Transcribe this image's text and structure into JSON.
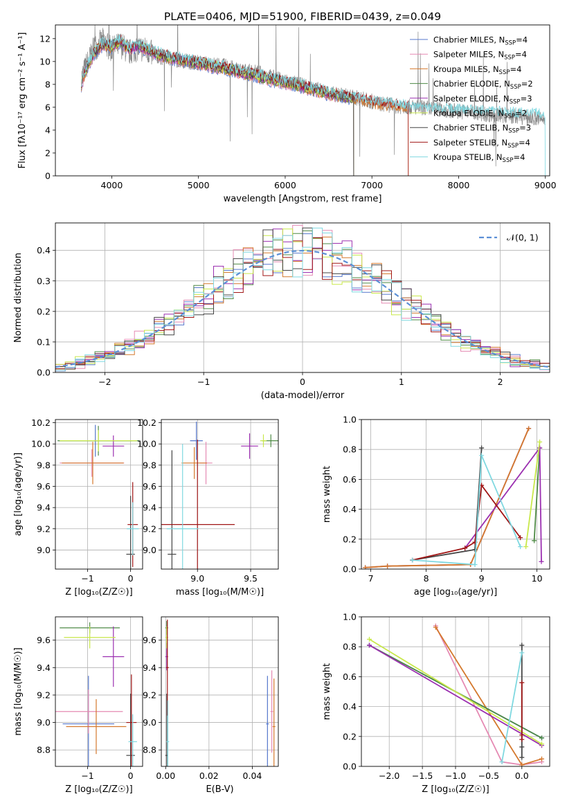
{
  "figure_title": "PLATE=0406, MJD=51900, FIBERID=0439, z=0.049",
  "models": [
    {
      "name": "Chabrier MILES",
      "nssp": "4",
      "color": "#5577cc"
    },
    {
      "name": "Salpeter MILES",
      "nssp": "4",
      "color": "#e58ab3"
    },
    {
      "name": "Kroupa MILES",
      "nssp": "4",
      "color": "#d4782c"
    },
    {
      "name": "Chabrier ELODIE",
      "nssp": "2",
      "color": "#4e8a45"
    },
    {
      "name": "Salpeter ELODIE",
      "nssp": "3",
      "color": "#9b2fb0"
    },
    {
      "name": "Kroupa ELODIE",
      "nssp": "2",
      "color": "#c8e84a"
    },
    {
      "name": "Chabrier STELIB",
      "nssp": "3",
      "color": "#444444"
    },
    {
      "name": "Salpeter STELIB",
      "nssp": "4",
      "color": "#a01515"
    },
    {
      "name": "Kroupa STELIB",
      "nssp": "4",
      "color": "#7fd8e0"
    }
  ],
  "chart_data": [
    {
      "id": "spectrum",
      "type": "line",
      "xlabel": "wavelength [Angstrom, rest frame]",
      "ylabel": "Flux [fλ10⁻¹⁷ erg cm⁻² s⁻¹ A⁻¹]",
      "xlim": [
        3350,
        9050
      ],
      "ylim": [
        0,
        13.2
      ],
      "xticks": [
        4000,
        5000,
        6000,
        7000,
        8000,
        9000
      ],
      "yticks": [
        0,
        2,
        4,
        6,
        8,
        10,
        12
      ],
      "data_series": {
        "color": "#888888",
        "x": [
          3650,
          3700,
          3800,
          3900,
          4000,
          4100,
          4200,
          4300,
          4400,
          4500,
          4700,
          4900,
          5100,
          5300,
          5500,
          5700,
          5900,
          6100,
          6300,
          6500,
          6700,
          6900,
          7100,
          7300,
          7500,
          7700,
          7900,
          8100,
          8300,
          8500,
          8700,
          8900
        ],
        "y": [
          8.5,
          9.5,
          11.2,
          11.8,
          11.0,
          11.5,
          10.8,
          11.2,
          11.0,
          10.5,
          10.2,
          10.0,
          9.8,
          9.6,
          9.2,
          9.0,
          8.5,
          8.1,
          7.7,
          7.2,
          7.0,
          6.7,
          6.3,
          6.1,
          6.0,
          5.9,
          5.7,
          5.6,
          5.4,
          5.3,
          5.2,
          5.0
        ]
      },
      "model_curve": {
        "x": [
          3650,
          3700,
          3800,
          3900,
          4000,
          4100,
          4200,
          4300,
          4400,
          4500,
          4700,
          4900,
          5100,
          5300,
          5500,
          5700,
          5900,
          6100,
          6300,
          6500,
          6700,
          6900,
          7100,
          7300,
          7420
        ],
        "y": [
          8.0,
          9.2,
          10.8,
          11.5,
          11.3,
          11.8,
          11.0,
          11.4,
          11.1,
          10.7,
          10.3,
          10.0,
          9.7,
          9.4,
          9.0,
          8.7,
          8.3,
          8.0,
          7.6,
          7.2,
          6.9,
          6.6,
          6.3,
          6.1,
          6.0
        ]
      },
      "model_ends": [
        6790,
        6790,
        7420,
        6790,
        6790,
        6790,
        6790,
        7420,
        9000
      ]
    },
    {
      "id": "residuals",
      "type": "line",
      "xlabel": "(data-model)/error",
      "ylabel": "Normed distribution",
      "xlim": [
        -2.5,
        2.5
      ],
      "ylim": [
        0,
        0.49
      ],
      "xticks": [
        -2,
        -1,
        0,
        1,
        2
      ],
      "yticks": [
        0.0,
        0.1,
        0.2,
        0.3,
        0.4
      ],
      "legend": "𝒩(0, 1)",
      "bin_width": 0.1,
      "normal_curve": {
        "mean": 0,
        "sigma": 1,
        "color": "#5b8fd6"
      }
    },
    {
      "id": "age-vs-Z",
      "type": "scatter",
      "xlabel": "Z [log₁₀(Z/Z☉)]",
      "ylabel": "age  [log₁₀(age/yr)]",
      "xlim": [
        -1.75,
        0.28
      ],
      "ylim": [
        8.82,
        10.23
      ],
      "xticks": [
        -1,
        0
      ],
      "yticks": [
        9.0,
        9.2,
        9.4,
        9.6,
        9.8,
        10.0,
        10.2
      ],
      "points": [
        {
          "x": -0.82,
          "y": 10.03,
          "xerr": 0.85,
          "yerr": 0.15
        },
        {
          "x": -0.9,
          "y": 9.82,
          "xerr": 0.75,
          "yerr": 0.13
        },
        {
          "x": -0.88,
          "y": 9.82,
          "xerr": 0.72,
          "yerr": 0.2
        },
        {
          "x": -0.75,
          "y": 10.03,
          "xerr": 0.95,
          "yerr": 0.14
        },
        {
          "x": -0.4,
          "y": 9.98,
          "xerr": 0.25,
          "yerr": 0.1
        },
        {
          "x": -0.75,
          "y": 10.03,
          "xerr": 0.9,
          "yerr": 0.1
        },
        {
          "x": 0.0,
          "y": 8.96,
          "xerr": 0.1,
          "yerr": 0.55
        },
        {
          "x": 0.05,
          "y": 9.24,
          "xerr": 0.12,
          "yerr": 0.4
        },
        {
          "x": 0.05,
          "y": 9.2,
          "xerr": 0.14,
          "yerr": 0.25
        }
      ]
    },
    {
      "id": "age-vs-mass",
      "type": "scatter",
      "xlabel": "mass [log₁₀(M/M☉)]",
      "ylabel": "",
      "xlim": [
        8.66,
        9.76
      ],
      "ylim": [
        8.82,
        10.23
      ],
      "xticks": [
        9.0,
        9.5
      ],
      "yticks": [
        9.0,
        9.2,
        9.4,
        9.6,
        9.8,
        10.0,
        10.2
      ],
      "points": [
        {
          "x": 8.99,
          "y": 10.03,
          "xerr": 0.06,
          "yerr": 0.18
        },
        {
          "x": 9.08,
          "y": 9.82,
          "xerr": 0.06,
          "yerr": 0.2
        },
        {
          "x": 8.97,
          "y": 9.82,
          "xerr": 0.12,
          "yerr": 0.15
        },
        {
          "x": 9.69,
          "y": 10.03,
          "xerr": 0.08,
          "yerr": 0.06
        },
        {
          "x": 9.49,
          "y": 9.98,
          "xerr": 0.08,
          "yerr": 0.12
        },
        {
          "x": 9.62,
          "y": 10.03,
          "xerr": 0.03,
          "yerr": 0.06
        },
        {
          "x": 8.76,
          "y": 8.96,
          "xerr": 0.04,
          "yerr": 0.98
        },
        {
          "x": 9.0,
          "y": 9.24,
          "xerr": 0.35,
          "yerr": 0.8
        },
        {
          "x": 8.86,
          "y": 9.2,
          "xerr": 0.15,
          "yerr": 0.8
        }
      ]
    },
    {
      "id": "weight-vs-age",
      "type": "line",
      "xlabel": "age  [log₁₀(age/yr)]",
      "ylabel": "mass weight",
      "xlim": [
        6.83,
        10.23
      ],
      "ylim": [
        0,
        1.0
      ],
      "xticks": [
        7,
        8,
        9,
        10
      ],
      "yticks": [
        0.0,
        0.2,
        0.4,
        0.6,
        0.8,
        1.0
      ],
      "series": [
        {
          "x": [
            6.9,
            7.3,
            8.8,
            9.85
          ],
          "y": [
            0.01,
            0.02,
            0.03,
            0.94
          ]
        },
        {
          "x": [
            6.9,
            7.3,
            8.8,
            9.85
          ],
          "y": [
            0.01,
            0.02,
            0.03,
            0.94
          ]
        },
        {
          "x": [
            6.9,
            7.3,
            8.8,
            9.85
          ],
          "y": [
            0.01,
            0.02,
            0.03,
            0.94
          ]
        },
        {
          "x": [
            9.95,
            10.05
          ],
          "y": [
            0.19,
            0.81
          ]
        },
        {
          "x": [
            8.7,
            10.05,
            10.08
          ],
          "y": [
            0.14,
            0.81,
            0.05
          ]
        },
        {
          "x": [
            9.8,
            10.05
          ],
          "y": [
            0.15,
            0.85
          ]
        },
        {
          "x": [
            7.75,
            8.88,
            9.0
          ],
          "y": [
            0.06,
            0.13,
            0.81
          ]
        },
        {
          "x": [
            7.75,
            8.7,
            8.88,
            9.0,
            9.7
          ],
          "y": [
            0.06,
            0.14,
            0.18,
            0.56,
            0.21
          ]
        },
        {
          "x": [
            7.75,
            8.88,
            9.0,
            9.7
          ],
          "y": [
            0.06,
            0.03,
            0.76,
            0.15
          ]
        }
      ]
    },
    {
      "id": "mass-vs-Z",
      "type": "scatter",
      "xlabel": "Z [log₁₀(Z/Z☉)]",
      "ylabel": "mass [log₁₀(M/M☉)]",
      "xlim": [
        -1.75,
        0.28
      ],
      "ylim": [
        8.68,
        9.77
      ],
      "xticks": [
        -1,
        0
      ],
      "yticks": [
        8.8,
        9.0,
        9.2,
        9.4,
        9.6
      ],
      "points": [
        {
          "x": -0.98,
          "y": 8.99,
          "xerr": 0.6,
          "yerr": 0.35
        },
        {
          "x": -0.98,
          "y": 9.08,
          "xerr": 0.8,
          "yerr": 0.16
        },
        {
          "x": -0.8,
          "y": 8.97,
          "xerr": 0.7,
          "yerr": 0.2
        },
        {
          "x": -0.95,
          "y": 9.69,
          "xerr": 0.7,
          "yerr": 0.04
        },
        {
          "x": -0.4,
          "y": 9.48,
          "xerr": 0.25,
          "yerr": 0.22
        },
        {
          "x": -0.95,
          "y": 9.62,
          "xerr": 0.6,
          "yerr": 0.08
        },
        {
          "x": 0.0,
          "y": 8.76,
          "xerr": 0.1,
          "yerr": 0.45
        },
        {
          "x": 0.02,
          "y": 9.0,
          "xerr": 0.12,
          "yerr": 0.35
        },
        {
          "x": 0.05,
          "y": 8.86,
          "xerr": 0.1,
          "yerr": 0.2
        }
      ]
    },
    {
      "id": "mass-vs-EBV",
      "type": "scatter",
      "xlabel": "E(B-V)",
      "ylabel": "",
      "xlim": [
        -0.002,
        0.052
      ],
      "ylim": [
        8.68,
        9.77
      ],
      "xticks": [
        0.0,
        0.02,
        0.04
      ],
      "yticks": [
        8.8,
        9.0,
        9.2,
        9.4,
        9.6
      ],
      "points": [
        {
          "x": 0.047,
          "y": 8.99,
          "xerr": 0.0,
          "yerr": 0.35
        },
        {
          "x": 0.049,
          "y": 9.08,
          "xerr": 0.0,
          "yerr": 0.3
        },
        {
          "x": 0.05,
          "y": 8.97,
          "xerr": 0.0,
          "yerr": 0.35
        },
        {
          "x": 0.0005,
          "y": 9.69,
          "xerr": 0.0,
          "yerr": 0.05
        },
        {
          "x": 0.0005,
          "y": 9.48,
          "xerr": 0.0,
          "yerr": 0.1
        },
        {
          "x": 0.0005,
          "y": 9.62,
          "xerr": 0.0,
          "yerr": 0.08
        },
        {
          "x": 0.0005,
          "y": 8.76,
          "xerr": 0.0,
          "yerr": 0.45
        },
        {
          "x": 0.0008,
          "y": 9.4,
          "xerr": 0.0,
          "yerr": 0.35
        },
        {
          "x": 0.001,
          "y": 8.86,
          "xerr": 0.0,
          "yerr": 0.3
        }
      ]
    },
    {
      "id": "weight-vs-Z",
      "type": "line",
      "xlabel": "Z [log₁₀(Z/Z☉)]",
      "ylabel": "mass weight",
      "xlim": [
        -2.42,
        0.42
      ],
      "ylim": [
        0,
        1.0
      ],
      "xticks": [
        -2.0,
        -1.5,
        -1.0,
        -0.5,
        0.0
      ],
      "yticks": [
        0.0,
        0.2,
        0.4,
        0.6,
        0.8,
        1.0
      ],
      "series": [
        {
          "x": [
            -2.3,
            0.3
          ],
          "y": [
            0.81,
            0.19
          ]
        },
        {
          "x": [
            -1.3,
            -0.3,
            0.0,
            0.3
          ],
          "y": [
            0.94,
            0.03,
            0.01,
            0.03
          ]
        },
        {
          "x": [
            -1.3,
            0.0,
            0.3
          ],
          "y": [
            0.93,
            0.01,
            0.05
          ]
        },
        {
          "x": [
            -2.3,
            0.3
          ],
          "y": [
            0.81,
            0.19
          ]
        },
        {
          "x": [
            -2.3,
            0.3
          ],
          "y": [
            0.81,
            0.14
          ]
        },
        {
          "x": [
            -2.3,
            0.3
          ],
          "y": [
            0.85,
            0.15
          ]
        },
        {
          "x": [
            0.0,
            0.0,
            0.0
          ],
          "y": [
            0.81,
            0.13,
            0.06
          ]
        },
        {
          "x": [
            0.0,
            0.0,
            0.0
          ],
          "y": [
            0.56,
            0.18,
            0.21
          ]
        },
        {
          "x": [
            -0.3,
            0.0
          ],
          "y": [
            0.03,
            0.76
          ]
        }
      ]
    }
  ]
}
